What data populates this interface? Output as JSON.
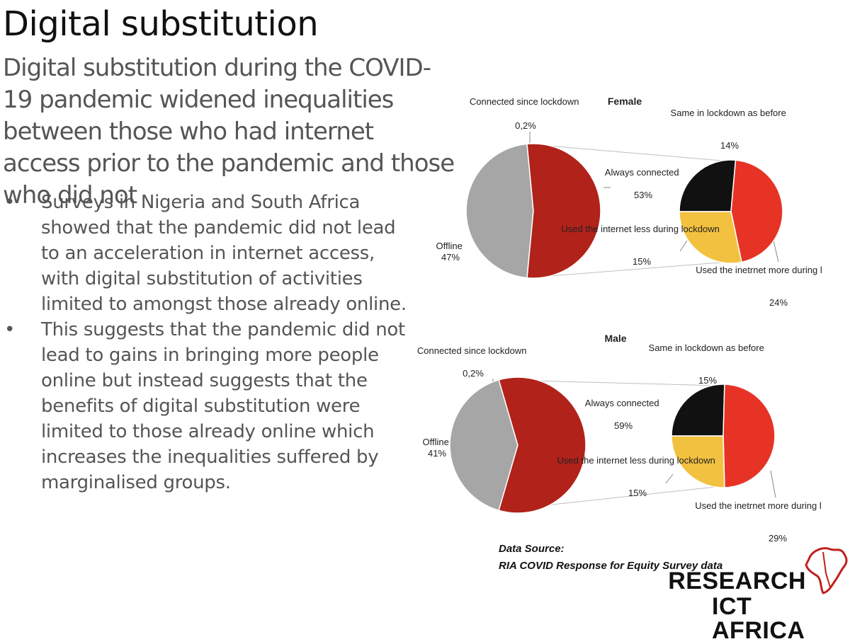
{
  "slide": {
    "title": "Digital substitution",
    "subtitle": "Digital substitution during the COVID-19 pandemic widened inequalities between those who had internet access prior to the pandemic and those who did not",
    "bullets": [
      "Surveys in Nigeria and South Africa showed that the pandemic did not lead to an acceleration in internet access, with digital substitution of activities limited to amongst those already online.",
      "This suggests that the pandemic did not lead to gains in bringing more people online but instead suggests that the benefits of digital substitution were limited to those already online which increases the inequalities suffered by marginalised groups."
    ],
    "bullet_symbol": "•"
  },
  "source": {
    "line1": "Data Source:",
    "line2": "RIA COVID Response for Equity Survey data"
  },
  "brand": {
    "line1": "RESEARCH",
    "line2": "ICT AFRICA",
    "logo_icon": "africa-continent-icon"
  },
  "colors": {
    "offline": "#a6a6a6",
    "always_connected": "#b0221a",
    "same": "#111111",
    "less": "#f3c140",
    "more": "#e63326",
    "connector": "#bfbfbf",
    "brand_red": "#c0201e"
  },
  "chart_data": [
    {
      "type": "pie",
      "title": "Female",
      "main": {
        "labels": [
          "Offline",
          "Always connected",
          "Connected since lockdown"
        ],
        "values": [
          47,
          53,
          0.2
        ],
        "display": [
          "47%",
          "53%",
          "0,2%"
        ]
      },
      "breakdown": {
        "of": "Always connected",
        "labels": [
          "Same in lockdown as before",
          "Used the inetrnet more during lockdown",
          "Used the internet less during lockdown"
        ],
        "values": [
          14,
          24,
          15
        ],
        "display": [
          "14%",
          "24%",
          "15%"
        ]
      }
    },
    {
      "type": "pie",
      "title": "Male",
      "main": {
        "labels": [
          "Offline",
          "Always connected",
          "Connected since lockdown"
        ],
        "values": [
          41,
          59,
          0.2
        ],
        "display": [
          "41%",
          "59%",
          "0,2%"
        ]
      },
      "breakdown": {
        "of": "Always connected",
        "labels": [
          "Same in lockdown as before",
          "Used the inetrnet more during lockdown",
          "Used the internet less during lockdown"
        ],
        "values": [
          15,
          29,
          15
        ],
        "display": [
          "15%",
          "29%",
          "15%"
        ]
      }
    }
  ]
}
